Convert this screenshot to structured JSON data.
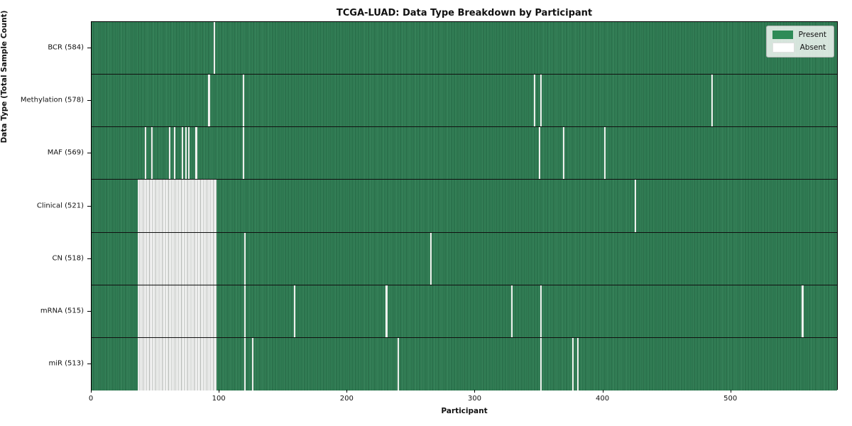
{
  "chart_data": {
    "type": "heatmap",
    "title": "TCGA-LUAD: Data Type Breakdown by Participant",
    "xlabel": "Participant",
    "ylabel": "Data Type (Total Sample Count)",
    "xlim": [
      0,
      584
    ],
    "x_ticks": [
      0,
      100,
      200,
      300,
      400,
      500
    ],
    "grid": false,
    "legend_position": "upper right",
    "legend": [
      {
        "label": "Present",
        "color": "#2e8b57"
      },
      {
        "label": "Absent",
        "color": "#ffffff"
      }
    ],
    "colors": {
      "present_fill": "#2e7d53",
      "present_edge": "#1f5a3b",
      "absent_fill": "#ffffff",
      "row_separator": "#101010",
      "spine": "#000000"
    },
    "rows": [
      {
        "label": "BCR (584)",
        "count": 584,
        "absent_singles": [
          96
        ],
        "absent_ranges": []
      },
      {
        "label": "Methylation (578)",
        "count": 578,
        "absent_singles": [
          92,
          119,
          347,
          352,
          486
        ],
        "absent_ranges": []
      },
      {
        "label": "MAF (569)",
        "count": 569,
        "absent_singles": [
          42,
          47,
          61,
          65,
          71,
          74,
          76,
          82,
          119,
          351,
          370,
          402
        ],
        "absent_ranges": []
      },
      {
        "label": "Clinical (521)",
        "count": 521,
        "absent_singles": [
          426
        ],
        "absent_ranges": [
          [
            36,
            98
          ]
        ]
      },
      {
        "label": "CN (518)",
        "count": 518,
        "absent_singles": [
          120,
          266
        ],
        "absent_ranges": [
          [
            36,
            98
          ]
        ]
      },
      {
        "label": "mRNA (515)",
        "count": 515,
        "absent_singles": [
          120,
          159,
          231,
          329,
          352,
          557
        ],
        "absent_ranges": [
          [
            36,
            98
          ]
        ]
      },
      {
        "label": "miR (513)",
        "count": 513,
        "absent_singles": [
          120,
          126,
          240,
          352,
          377,
          381
        ],
        "absent_ranges": [
          [
            36,
            98
          ]
        ]
      }
    ]
  }
}
